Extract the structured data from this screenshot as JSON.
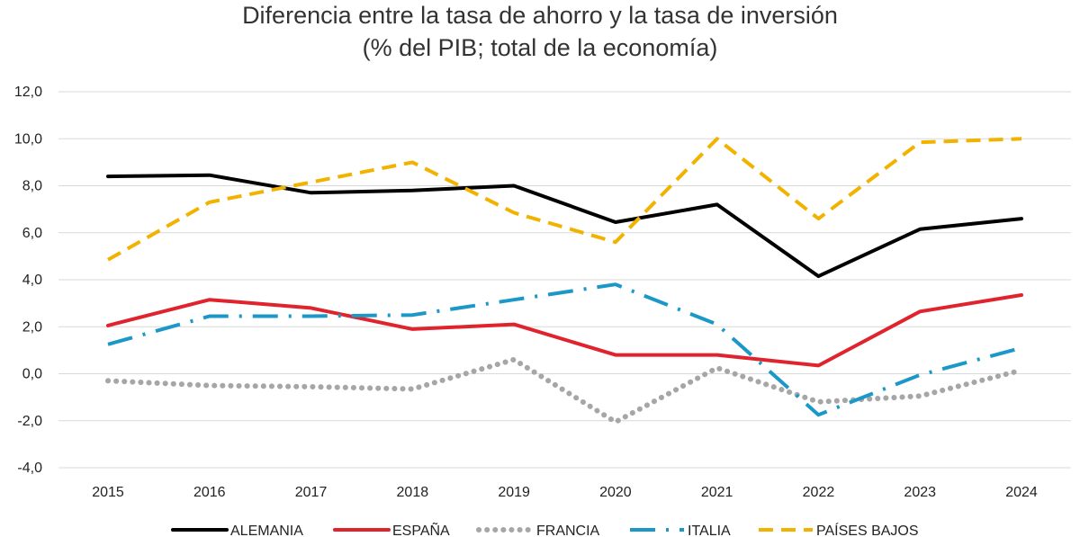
{
  "chart_data": {
    "type": "line",
    "title": "Diferencia entre la tasa de ahorro y la tasa de inversión",
    "subtitle": "(% del PIB; total de la economía)",
    "x": [
      "2015",
      "2016",
      "2017",
      "2018",
      "2019",
      "2020",
      "2021",
      "2022",
      "2023",
      "2024"
    ],
    "ylim": [
      -4,
      12
    ],
    "yticks": [
      "12,0",
      "10,0",
      "8,0",
      "6,0",
      "4,0",
      "2,0",
      "0,0",
      "-2,0",
      "-4,0"
    ],
    "ytick_values": [
      12,
      10,
      8,
      6,
      4,
      2,
      0,
      -2,
      -4
    ],
    "grid": true,
    "legend_position": "bottom",
    "series": [
      {
        "name": "ALEMANIA",
        "color": "#000000",
        "style": "solid",
        "values": [
          8.4,
          8.45,
          7.7,
          7.8,
          8.0,
          6.45,
          7.2,
          4.15,
          6.15,
          6.6
        ]
      },
      {
        "name": "ESPAÑA",
        "color": "#e0242e",
        "style": "solid",
        "values": [
          2.05,
          3.15,
          2.8,
          1.9,
          2.1,
          0.8,
          0.8,
          0.35,
          2.65,
          3.35
        ]
      },
      {
        "name": "FRANCIA",
        "color": "#a6a6a6",
        "style": "dotted",
        "values": [
          -0.3,
          -0.5,
          -0.55,
          -0.65,
          0.6,
          -2.05,
          0.25,
          -1.2,
          -0.95,
          0.15
        ]
      },
      {
        "name": "ITALIA",
        "color": "#1b98c7",
        "style": "dashdot",
        "values": [
          1.25,
          2.45,
          2.45,
          2.5,
          3.15,
          3.8,
          2.1,
          -1.75,
          -0.05,
          1.1
        ]
      },
      {
        "name": "PAÍSES BAJOS",
        "color": "#f2b200",
        "style": "dashed",
        "values": [
          4.85,
          7.3,
          8.15,
          9.0,
          6.85,
          5.6,
          10.0,
          6.6,
          9.85,
          10.0
        ]
      }
    ]
  }
}
